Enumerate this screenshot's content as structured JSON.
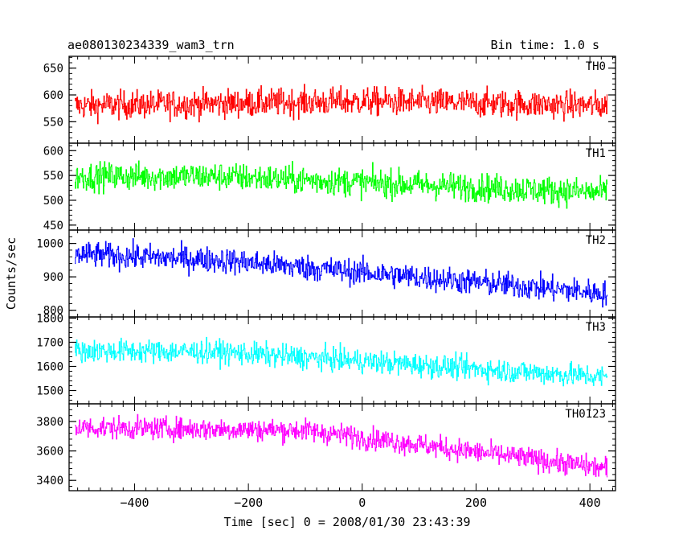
{
  "chart_data": {
    "type": "line",
    "title": "ae080130234339_wam3_trn",
    "bin_time": "Bin time: 1.0 s",
    "ylabel": "Counts/sec",
    "xlabel": "Time [sec] 0 = 2008/01/30 23:43:39",
    "xlim": [
      -515,
      445
    ],
    "x_ticks": [
      -400,
      -200,
      0,
      200,
      400
    ],
    "x_tick_labels": [
      "−400",
      "−200",
      "0",
      "200",
      "400"
    ],
    "x_range_data": [
      -505,
      430
    ],
    "panels": [
      {
        "name": "TH0",
        "color": "#ff0000",
        "ylim": [
          510,
          672
        ],
        "y_ticks": [
          550,
          600,
          650
        ],
        "y_tick_labels": [
          "550",
          "600",
          "650"
        ],
        "trend": [
          [
            -505,
            580
          ],
          [
            0,
            588
          ],
          [
            430,
            580
          ]
        ],
        "noise": 26
      },
      {
        "name": "TH1",
        "color": "#00ff00",
        "ylim": [
          440,
          615
        ],
        "y_ticks": [
          450,
          500,
          550,
          600
        ],
        "y_tick_labels": [
          "450",
          "500",
          "550",
          "600"
        ],
        "trend": [
          [
            -505,
            548
          ],
          [
            -250,
            548
          ],
          [
            430,
            515
          ]
        ],
        "noise": 28
      },
      {
        "name": "TH2",
        "color": "#0000ff",
        "ylim": [
          780,
          1040
        ],
        "y_ticks": [
          800,
          900,
          1000
        ],
        "y_tick_labels": [
          "800",
          "900",
          "1000"
        ],
        "trend": [
          [
            -505,
            968
          ],
          [
            -250,
            950
          ],
          [
            430,
            850
          ]
        ],
        "noise": 38
      },
      {
        "name": "TH3",
        "color": "#00ffff",
        "ylim": [
          1445,
          1805
        ],
        "y_ticks": [
          1500,
          1600,
          1700,
          1800
        ],
        "y_tick_labels": [
          "1500",
          "1600",
          "1700",
          "1800"
        ],
        "trend": [
          [
            -505,
            1665
          ],
          [
            -250,
            1660
          ],
          [
            430,
            1555
          ]
        ],
        "noise": 48
      },
      {
        "name": "TH0123",
        "color": "#ff00ff",
        "ylim": [
          3330,
          3920
        ],
        "y_ticks": [
          3400,
          3600,
          3800
        ],
        "y_tick_labels": [
          "3400",
          "3600",
          "3800"
        ],
        "trend": [
          [
            -505,
            3760
          ],
          [
            -100,
            3740
          ],
          [
            430,
            3480
          ]
        ],
        "noise": 75
      }
    ]
  }
}
